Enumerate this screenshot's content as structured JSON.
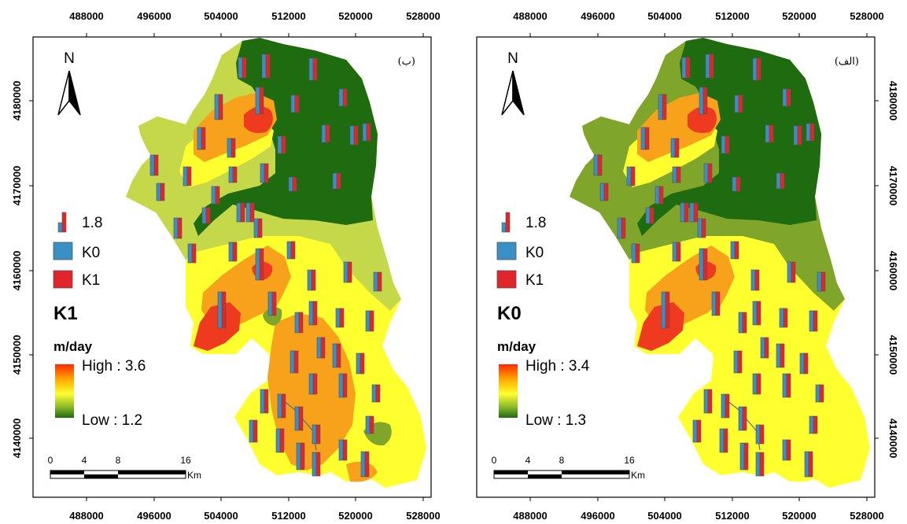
{
  "maps": [
    {
      "panel_label": "(ب)",
      "legend_title": "K1",
      "unit": "m/day",
      "high_label": "High : 3.6",
      "low_label": "Low : 1.2",
      "bar_scale_label": "1.8",
      "k0_label": "K0",
      "k1_label": "K1",
      "north_label": "N",
      "scale_ticks": [
        "0",
        "4",
        "8",
        "16"
      ],
      "scale_unit": "Km"
    },
    {
      "panel_label": "(الف)",
      "legend_title": "K0",
      "unit": "m/day",
      "high_label": "High : 3.4",
      "low_label": "Low : 1.3",
      "bar_scale_label": "1.8",
      "k0_label": "K0",
      "k1_label": "K1",
      "north_label": "N",
      "scale_ticks": [
        "0",
        "4",
        "8",
        "16"
      ],
      "scale_unit": "Km"
    }
  ],
  "x_ticks": [
    "488000",
    "496000",
    "504000",
    "512000",
    "520000",
    "528000"
  ],
  "y_ticks": [
    "4180000",
    "4170000",
    "4160000",
    "4150000",
    "4140000"
  ],
  "colors": {
    "k0_bar": "#3a8fc4",
    "k1_bar": "#e0262a",
    "dark_green": "#1e6b10",
    "green": "#7fa52a",
    "light_green": "#c4d84a",
    "yellow": "#ffff30",
    "orange": "#f7a21a",
    "red": "#ee3b1f"
  }
}
